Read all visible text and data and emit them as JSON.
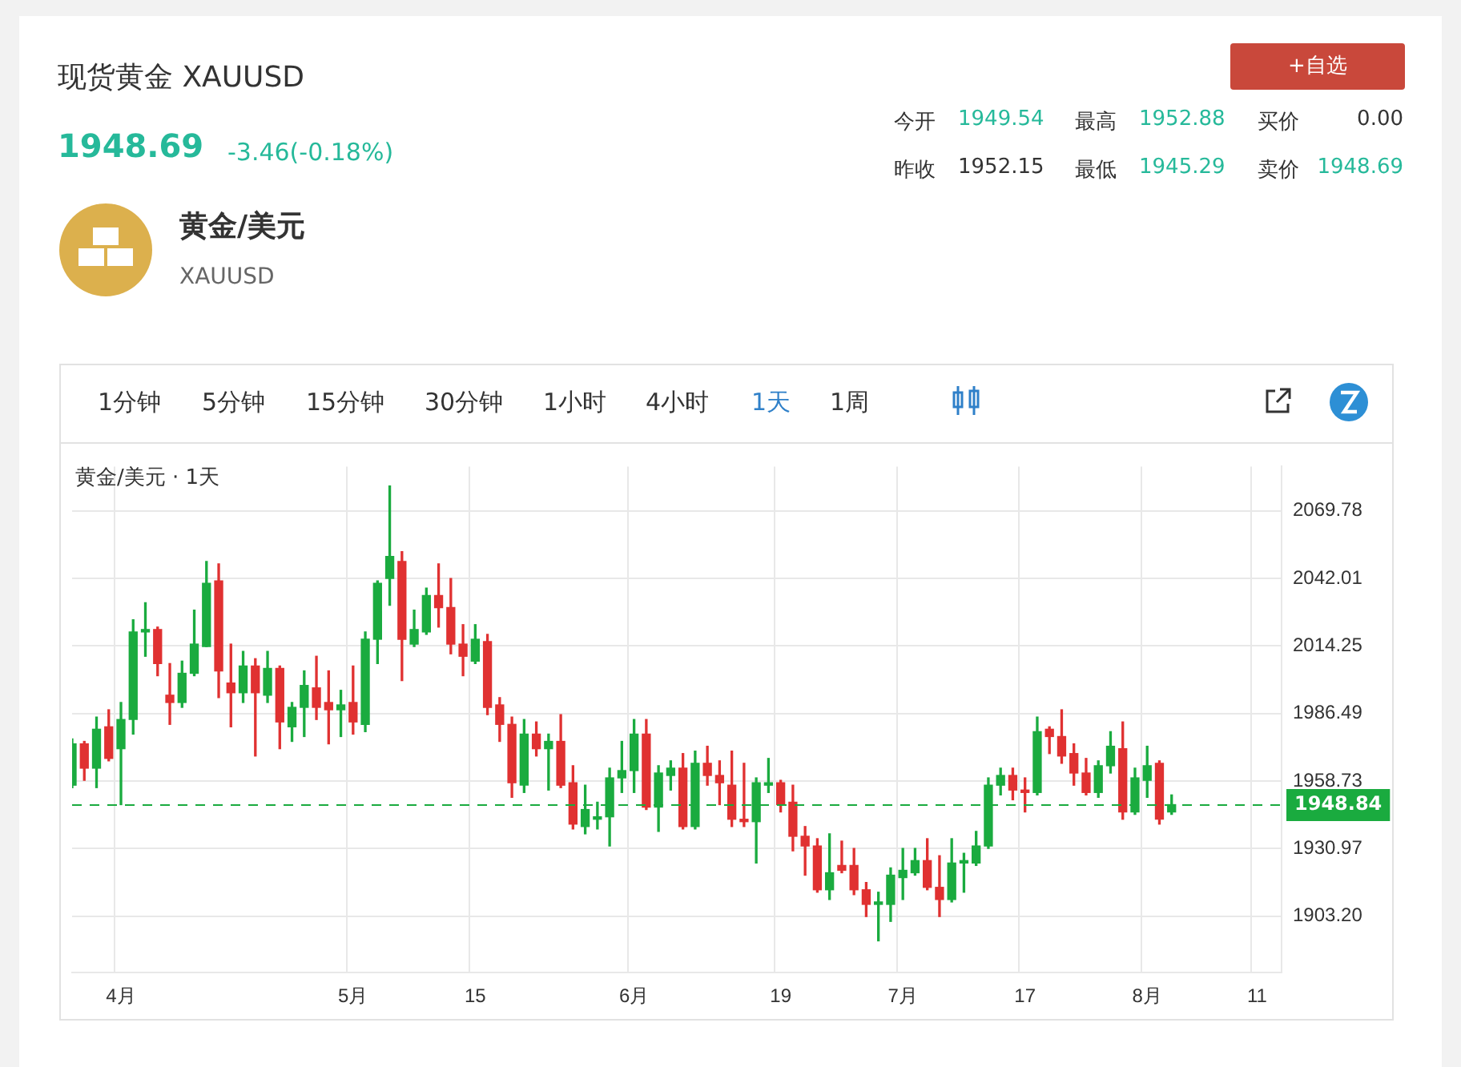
{
  "chart_data": {
    "type": "candlestick",
    "title": "现货黄金 XAUUSD",
    "annotations": [
      "1948.69",
      "-3.46(-0.18%)",
      "黄金/美元",
      "XAUUSD",
      "今开",
      "1949.54",
      "最高",
      "1952.88",
      "买价",
      "0.00",
      "昨收",
      "1952.15",
      "最低",
      "1945.29",
      "卖价",
      "1948.69",
      "+自选",
      "1分钟",
      "5分钟",
      "15分钟",
      "30分钟",
      "1小时",
      "4小时",
      "1天",
      "1周",
      "黄金/美元 · 1天"
    ],
    "categories": [
      null,
      null,
      null,
      null,
      "4月",
      null,
      null,
      null,
      null,
      null,
      null,
      null,
      null,
      null,
      null,
      null,
      null,
      null,
      null,
      null,
      null,
      null,
      null,
      "5月",
      null,
      null,
      null,
      null,
      null,
      null,
      null,
      null,
      null,
      "15",
      null,
      null,
      null,
      null,
      null,
      null,
      null,
      null,
      null,
      null,
      null,
      null,
      "6月",
      null,
      null,
      null,
      null,
      null,
      null,
      null,
      null,
      null,
      null,
      null,
      "19",
      null,
      null,
      null,
      null,
      null,
      null,
      null,
      null,
      null,
      "7月",
      null,
      null,
      null,
      null,
      null,
      null,
      null,
      null,
      null,
      "17",
      null,
      null,
      null,
      null,
      null,
      null,
      null,
      null,
      null,
      "8月",
      null,
      null,
      null,
      null,
      null,
      null,
      null,
      null,
      "11",
      null,
      null
    ],
    "ohlc": [
      [
        1957,
        1976,
        1956,
        1974
      ],
      [
        1974,
        1975,
        1959,
        1964
      ],
      [
        1964,
        1985,
        1956,
        1980
      ],
      [
        1981,
        1988,
        1967,
        1968
      ],
      [
        1972,
        1991,
        1949,
        1984
      ],
      [
        1984,
        2025,
        1978,
        2020
      ],
      [
        2020,
        2032,
        2010,
        2021
      ],
      [
        2021,
        2022,
        2002,
        2007
      ],
      [
        1994,
        2007,
        1982,
        1991
      ],
      [
        1991,
        2008,
        1989,
        2003
      ],
      [
        2003,
        2029,
        2002,
        2015
      ],
      [
        2014,
        2049,
        2014,
        2040
      ],
      [
        2041,
        2048,
        1993,
        2004
      ],
      [
        1999,
        2015,
        1981,
        1995
      ],
      [
        1995,
        2012,
        1991,
        2006
      ],
      [
        2006,
        2009,
        1969,
        1995
      ],
      [
        1994,
        2012,
        1991,
        2005
      ],
      [
        2005,
        2006,
        1972,
        1983
      ],
      [
        1981,
        1991,
        1975,
        1989
      ],
      [
        1989,
        2004,
        1977,
        1998
      ],
      [
        1997,
        2010,
        1984,
        1989
      ],
      [
        1991,
        2004,
        1974,
        1988
      ],
      [
        1988,
        1996,
        1977,
        1990
      ],
      [
        1991,
        2006,
        1978,
        1983
      ],
      [
        1982,
        2020,
        1979,
        2017
      ],
      [
        2017,
        2041,
        2007,
        2040
      ],
      [
        2042,
        2080,
        2031,
        2051
      ],
      [
        2049,
        2053,
        2000,
        2017
      ],
      [
        2015,
        2029,
        2014,
        2021
      ],
      [
        2020,
        2038,
        2019,
        2035
      ],
      [
        2035,
        2048,
        2022,
        2030
      ],
      [
        2030,
        2042,
        2011,
        2015
      ],
      [
        2015,
        2023,
        2002,
        2010
      ],
      [
        2008,
        2023,
        2007,
        2017
      ],
      [
        2016,
        2019,
        1986,
        1989
      ],
      [
        1990,
        1993,
        1975,
        1982
      ],
      [
        1982,
        1985,
        1952,
        1958
      ],
      [
        1957,
        1984,
        1954,
        1978
      ],
      [
        1978,
        1983,
        1969,
        1972
      ],
      [
        1972,
        1978,
        1955,
        1975
      ],
      [
        1975,
        1986,
        1956,
        1957
      ],
      [
        1958,
        1965,
        1939,
        1941
      ],
      [
        1940,
        1957,
        1937,
        1947
      ],
      [
        1943,
        1950,
        1939,
        1944
      ],
      [
        1944,
        1964,
        1932,
        1960
      ],
      [
        1960,
        1975,
        1954,
        1963
      ],
      [
        1963,
        1984,
        1954,
        1978
      ],
      [
        1978,
        1984,
        1947,
        1948
      ],
      [
        1948,
        1965,
        1938,
        1962
      ],
      [
        1961,
        1967,
        1955,
        1964
      ],
      [
        1964,
        1970,
        1939,
        1940
      ],
      [
        1940,
        1971,
        1939,
        1966
      ],
      [
        1966,
        1973,
        1957,
        1961
      ],
      [
        1961,
        1967,
        1949,
        1958
      ],
      [
        1957,
        1971,
        1940,
        1943
      ],
      [
        1943,
        1966,
        1940,
        1942
      ],
      [
        1942,
        1960,
        1925,
        1958
      ],
      [
        1957,
        1968,
        1954,
        1958
      ],
      [
        1958,
        1959,
        1946,
        1949
      ],
      [
        1950,
        1957,
        1930,
        1936
      ],
      [
        1936,
        1940,
        1920,
        1932
      ],
      [
        1932,
        1935,
        1913,
        1914
      ],
      [
        1914,
        1937,
        1910,
        1921
      ],
      [
        1924,
        1934,
        1921,
        1922
      ],
      [
        1924,
        1931,
        1912,
        1914
      ],
      [
        1914,
        1917,
        1903,
        1908
      ],
      [
        1908,
        1913,
        1893,
        1909
      ],
      [
        1908,
        1923,
        1901,
        1920
      ],
      [
        1919,
        1931,
        1910,
        1922
      ],
      [
        1921,
        1931,
        1920,
        1926
      ],
      [
        1926,
        1935,
        1914,
        1915
      ],
      [
        1915,
        1928,
        1903,
        1910
      ],
      [
        1910,
        1935,
        1909,
        1925
      ],
      [
        1925,
        1929,
        1913,
        1926
      ],
      [
        1925,
        1938,
        1924,
        1932
      ],
      [
        1932,
        1960,
        1931,
        1957
      ],
      [
        1957,
        1964,
        1953,
        1961
      ],
      [
        1961,
        1964,
        1951,
        1955
      ],
      [
        1955,
        1960,
        1946,
        1954
      ],
      [
        1954,
        1985,
        1953,
        1979
      ],
      [
        1980,
        1981,
        1970,
        1977
      ],
      [
        1977,
        1988,
        1966,
        1969
      ],
      [
        1970,
        1974,
        1957,
        1962
      ],
      [
        1962,
        1968,
        1953,
        1954
      ],
      [
        1954,
        1967,
        1952,
        1965
      ],
      [
        1965,
        1979,
        1962,
        1973
      ],
      [
        1972,
        1983,
        1943,
        1946
      ],
      [
        1946,
        1964,
        1945,
        1960
      ],
      [
        1959,
        1973,
        1952,
        1965
      ],
      [
        1966,
        1967,
        1941,
        1943
      ],
      [
        1946,
        1953,
        1945,
        1949
      ],
      null,
      null,
      null,
      null,
      null,
      null,
      null,
      null,
      null
    ],
    "colors": [
      "#1aab3f",
      "#e03131",
      "#1aab3f",
      "#e03131",
      "#1aab3f",
      "#1aab3f",
      "#1aab3f",
      "#e03131",
      "#e03131",
      "#1aab3f",
      "#1aab3f",
      "#1aab3f",
      "#e03131",
      "#e03131",
      "#1aab3f",
      "#e03131",
      "#1aab3f",
      "#e03131",
      "#1aab3f",
      "#1aab3f",
      "#e03131",
      "#e03131",
      "#1aab3f",
      "#e03131",
      "#1aab3f",
      "#1aab3f",
      "#1aab3f",
      "#e03131",
      "#1aab3f",
      "#1aab3f",
      "#e03131",
      "#e03131",
      "#e03131",
      "#1aab3f",
      "#e03131",
      "#e03131",
      "#e03131",
      "#1aab3f",
      "#e03131",
      "#1aab3f",
      "#e03131",
      "#e03131",
      "#1aab3f",
      "#1aab3f",
      "#1aab3f",
      "#1aab3f",
      "#1aab3f",
      "#e03131",
      "#1aab3f",
      "#1aab3f",
      "#e03131",
      "#1aab3f",
      "#e03131",
      "#e03131",
      "#e03131",
      "#e03131",
      "#1aab3f",
      "#1aab3f",
      "#e03131",
      "#e03131",
      "#e03131",
      "#e03131",
      "#1aab3f",
      "#e03131",
      "#e03131",
      "#e03131",
      "#1aab3f",
      "#1aab3f",
      "#1aab3f",
      "#1aab3f",
      "#e03131",
      "#e03131",
      "#1aab3f",
      "#1aab3f",
      "#1aab3f",
      "#1aab3f",
      "#1aab3f",
      "#e03131",
      "#e03131",
      "#1aab3f",
      "#e03131",
      "#e03131",
      "#e03131",
      "#e03131",
      "#1aab3f",
      "#1aab3f",
      "#e03131",
      "#1aab3f",
      "#1aab3f",
      "#e03131",
      "#1aab3f",
      null,
      null,
      null,
      null,
      null,
      null,
      null,
      null,
      null
    ],
    "ylim": [
      1880,
      2088
    ],
    "yticks": [
      {
        "value": 1903.2,
        "label": "1903.20"
      },
      1930.97,
      1958.73,
      1986.49,
      2014.25,
      2042.01,
      2069.78
    ],
    "ref_lines": [
      {
        "axis": "y",
        "value": 1948.84,
        "label": "1948.84",
        "color": "#1aab3f",
        "line_style": "dashed"
      }
    ],
    "grid": true,
    "legend": false
  }
}
